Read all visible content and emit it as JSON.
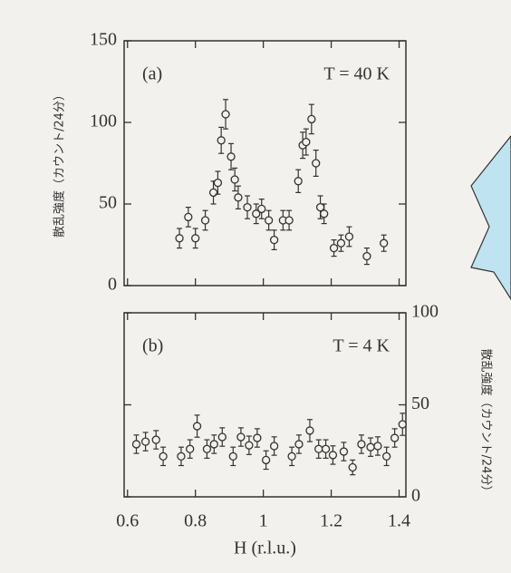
{
  "chart_data": [
    {
      "type": "scatter",
      "panel_label": "(a)",
      "annotation": "T = 40 K",
      "ylabel": "散乱強度（カウント/24分）",
      "x": [
        0.753,
        0.779,
        0.8,
        0.829,
        0.853,
        0.866,
        0.876,
        0.889,
        0.905,
        0.916,
        0.926,
        0.953,
        0.979,
        0.995,
        1.016,
        1.032,
        1.058,
        1.076,
        1.103,
        1.116,
        1.126,
        1.142,
        1.155,
        1.168,
        1.179,
        1.208,
        1.229,
        1.253,
        1.305,
        1.355
      ],
      "values": [
        29,
        42,
        29,
        40,
        57,
        63,
        89,
        105,
        79,
        65,
        54,
        48,
        44,
        47,
        40,
        28,
        40,
        40,
        64,
        86,
        88,
        102,
        75,
        48,
        44,
        23,
        26,
        30,
        18,
        26
      ],
      "errors": [
        6,
        6,
        6,
        6,
        7,
        7,
        8,
        9,
        8,
        7,
        7,
        7,
        6,
        6,
        6,
        6,
        6,
        6,
        7,
        8,
        8,
        9,
        8,
        7,
        6,
        5,
        5,
        6,
        5,
        5
      ],
      "xlim": [
        0.59,
        1.42
      ],
      "xticks": [
        0.6,
        0.8,
        1,
        1.2,
        1.4
      ],
      "ylim": [
        0,
        150
      ],
      "yticks": [
        0,
        50,
        100,
        150
      ]
    },
    {
      "type": "scatter",
      "panel_label": "(b)",
      "annotation": "T = 4 K",
      "ylabel": "散乱強度（カウント/24分）",
      "xlabel": "H (r.l.u.)",
      "x": [
        0.626,
        0.653,
        0.684,
        0.705,
        0.758,
        0.784,
        0.805,
        0.834,
        0.855,
        0.879,
        0.911,
        0.934,
        0.958,
        0.982,
        1.008,
        1.032,
        1.084,
        1.105,
        1.137,
        1.163,
        1.184,
        1.205,
        1.237,
        1.263,
        1.289,
        1.316,
        1.337,
        1.363,
        1.387,
        1.41
      ],
      "values": [
        28.6,
        30,
        31,
        22,
        22,
        26,
        38.4,
        26,
        28.6,
        32.5,
        22,
        32.5,
        28,
        32,
        20,
        27.6,
        22,
        28.6,
        36,
        26,
        26,
        22.7,
        24.6,
        16,
        28.6,
        27,
        27.6,
        22,
        32,
        39.4
      ],
      "errors": [
        5,
        5,
        5,
        5,
        5,
        5,
        6,
        5,
        5,
        5,
        5,
        5,
        5,
        5,
        5,
        5,
        5,
        5,
        6,
        5,
        5,
        5,
        5,
        4,
        5,
        5,
        5,
        5,
        5,
        6
      ],
      "xlim": [
        0.59,
        1.42
      ],
      "xticks": [
        0.6,
        0.8,
        1,
        1.2,
        1.4
      ],
      "ylim": [
        0,
        100
      ],
      "yticks": [
        0,
        50,
        100
      ]
    }
  ]
}
